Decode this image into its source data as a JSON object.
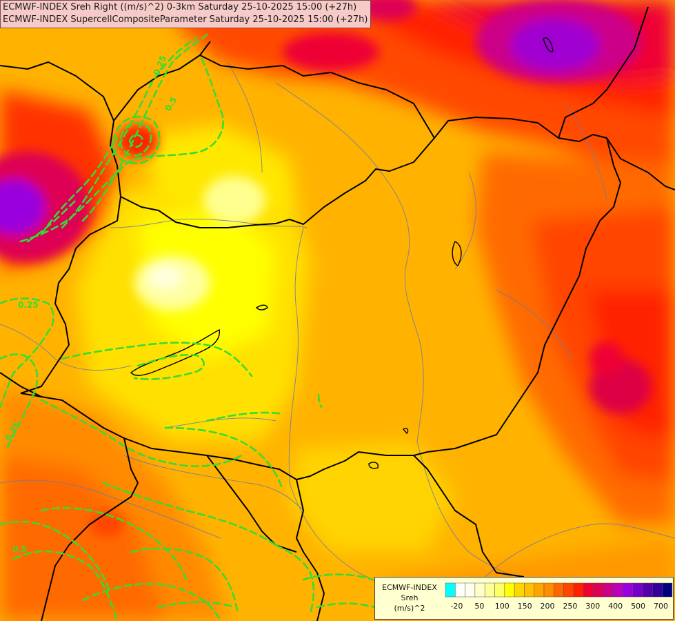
{
  "header": {
    "line1": "ECMWF-INDEX Sreh Right ((m/s)^2) 0-3km Saturday 25-10-2025 15:00 (+27h)",
    "line2": "ECMWF-INDEX SupercellCompositeParameter Saturday 25-10-2025 15:00 (+27h)"
  },
  "legend": {
    "source": "ECMWF-INDEX",
    "variable": "Sreh",
    "unit": "(m/s)^2",
    "colors": [
      "#00ffff",
      "#ffffff",
      "#fffff0",
      "#ffffcc",
      "#ffff99",
      "#ffff66",
      "#ffff00",
      "#ffd700",
      "#ffc000",
      "#ffa500",
      "#ff8c00",
      "#ff6600",
      "#ff4500",
      "#ff2000",
      "#ee0033",
      "#dd0055",
      "#cc0088",
      "#bb00bb",
      "#9900dd",
      "#7700cc",
      "#5500aa",
      "#330099",
      "#000080"
    ],
    "ticks": [
      "-20",
      "50",
      "100",
      "150",
      "200",
      "250",
      "300",
      "400",
      "500",
      "700"
    ]
  },
  "contours": {
    "color": "#33dd33",
    "labels": [
      "0.25",
      "0.5",
      "0.25",
      "0.25",
      "0.5"
    ]
  }
}
